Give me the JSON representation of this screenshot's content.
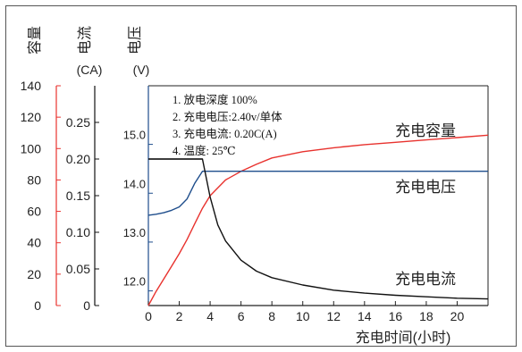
{
  "chart_data": {
    "type": "line",
    "x_axis": {
      "label": "充电时间(小时)",
      "range": [
        0,
        22
      ],
      "ticks": [
        0,
        2,
        4,
        6,
        8,
        10,
        12,
        14,
        16,
        18,
        20
      ],
      "tick_labels": [
        "0",
        "2",
        "4",
        "6",
        "8",
        "10",
        "12",
        "14",
        "16",
        "18",
        "20"
      ]
    },
    "y_axes": [
      {
        "id": "capacity",
        "title": "容量",
        "unit": "",
        "range": [
          0,
          140
        ],
        "ticks": [
          0,
          20,
          40,
          60,
          80,
          100,
          120,
          140
        ],
        "tick_labels": [
          "0",
          "20",
          "40",
          "60",
          "80",
          "100",
          "120",
          "140"
        ],
        "color": "#e8322e"
      },
      {
        "id": "current",
        "title": "电流",
        "unit": "(CA)",
        "range": [
          0,
          0.3
        ],
        "ticks": [
          0,
          0.05,
          0.1,
          0.15,
          0.2,
          0.25
        ],
        "tick_labels": [
          "0",
          "0.05",
          "0.10",
          "0.15",
          "0.20",
          "0.25"
        ],
        "color": "#111111"
      },
      {
        "id": "voltage",
        "title": "电压",
        "unit": "(V)",
        "range": [
          11.7,
          16.2
        ],
        "ticks": [
          12,
          13,
          14,
          15
        ],
        "tick_labels": [
          "12.0",
          "13.0",
          "14.0",
          "15.0"
        ],
        "color": "#1f4e8c"
      }
    ],
    "series": [
      {
        "name": "充电容量",
        "axis": "capacity",
        "color": "#e8322e",
        "x": [
          0,
          0.5,
          1,
          1.5,
          2,
          2.5,
          3,
          3.5,
          4,
          5,
          6,
          7,
          8,
          10,
          12,
          14,
          16,
          18,
          20,
          22
        ],
        "y": [
          0,
          9,
          17,
          25,
          33,
          42,
          52,
          62,
          70,
          80,
          85.5,
          90,
          94,
          98,
          100.5,
          102.5,
          104,
          105.5,
          107,
          108.5
        ]
      },
      {
        "name": "充电电压",
        "axis": "voltage",
        "color": "#1f4e8c",
        "x": [
          0,
          0.5,
          1,
          1.5,
          2,
          2.5,
          3,
          3.5,
          22
        ],
        "y": [
          13.55,
          13.57,
          13.6,
          13.65,
          13.72,
          13.88,
          14.2,
          14.45,
          14.45
        ]
      },
      {
        "name": "充电电流",
        "axis": "current",
        "color": "#111111",
        "x": [
          0,
          3.5,
          4,
          4.5,
          5,
          6,
          7,
          8,
          10,
          12,
          14,
          16,
          18,
          20,
          22
        ],
        "y": [
          0.2,
          0.2,
          0.148,
          0.11,
          0.088,
          0.062,
          0.047,
          0.038,
          0.028,
          0.021,
          0.017,
          0.014,
          0.012,
          0.01,
          0.009
        ]
      }
    ],
    "legend_box": {
      "color": "#222222",
      "items": [
        "1.  放电深度 100%",
        "2.  充电电压:2.40v/单体",
        "3.  充电电流: 0.20C(A)",
        "4.   温度: 25℃"
      ]
    },
    "grid": false
  }
}
